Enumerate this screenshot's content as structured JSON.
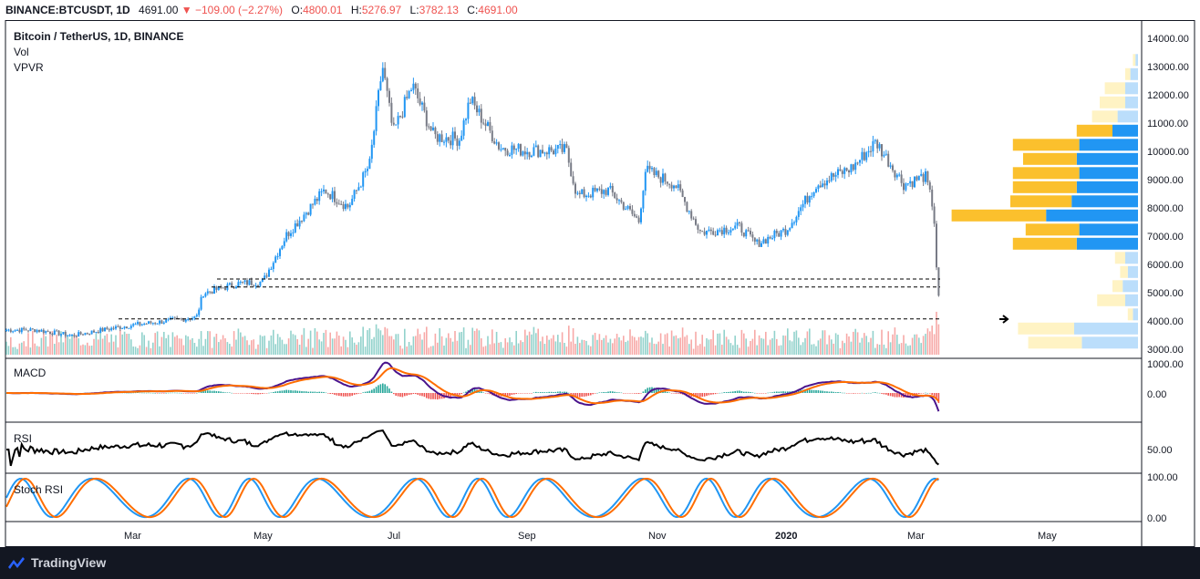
{
  "header": {
    "symbol": "BINANCE:BTCUSDT, 1D",
    "price": "4691.00",
    "change": "−109.00 (−2.27%)",
    "o_label": "O:",
    "o_value": "4800.01",
    "h_label": "H:",
    "h_value": "5276.97",
    "l_label": "L:",
    "l_value": "3782.13",
    "c_label": "C:",
    "c_value": "4691.00"
  },
  "legend": {
    "title": "Bitcoin / TetherUS, 1D, BINANCE",
    "vol": "Vol",
    "vpvr": "VPVR"
  },
  "panes": {
    "macd": "MACD",
    "rsi": "RSI",
    "stoch": "Stoch RSI"
  },
  "price_axis": [
    "14000.00",
    "13000.00",
    "12000.00",
    "11000.00",
    "10000.00",
    "9000.00",
    "8000.00",
    "7000.00",
    "6000.00",
    "5000.00",
    "4000.00",
    "3000.00"
  ],
  "macd_axis": [
    "1000.00",
    "0.00"
  ],
  "rsi_axis": [
    "50.00"
  ],
  "stoch_axis": [
    "100.00",
    "0.00"
  ],
  "time_axis": [
    {
      "label": "Mar",
      "bold": false
    },
    {
      "label": "May",
      "bold": false
    },
    {
      "label": "Jul",
      "bold": false
    },
    {
      "label": "Sep",
      "bold": false
    },
    {
      "label": "Nov",
      "bold": false
    },
    {
      "label": "2020",
      "bold": true
    },
    {
      "label": "Mar",
      "bold": false
    },
    {
      "label": "May",
      "bold": false
    }
  ],
  "footer": {
    "brand": "TradingView"
  },
  "colors": {
    "up": "#2196f3",
    "down": "#787b86",
    "vol_up": "#26a69a",
    "vol_down": "#ef5350",
    "macd": "#4a148c",
    "signal": "#ff6d00",
    "rsi": "#000000",
    "stoch_k": "#2196f3",
    "stoch_d": "#ff6d00",
    "vpvr_up": "#2196f3",
    "vpvr_down": "#fbc02d",
    "vpvr_up_light": "#bbdefb",
    "vpvr_down_light": "#fff3c4"
  },
  "chart_data": {
    "type": "candlestick",
    "title": "Bitcoin / TetherUS, 1D, BINANCE",
    "ylim": [
      2700,
      14500
    ],
    "horizontal_levels": [
      5450,
      5170,
      4040
    ],
    "close_path": [
      {
        "x": "2019-01-15",
        "y": 3650
      },
      {
        "x": "2019-02-01",
        "y": 3450
      },
      {
        "x": "2019-02-15",
        "y": 3650
      },
      {
        "x": "2019-03-01",
        "y": 3820
      },
      {
        "x": "2019-03-15",
        "y": 3950
      },
      {
        "x": "2019-03-31",
        "y": 4100
      },
      {
        "x": "2019-04-03",
        "y": 4950
      },
      {
        "x": "2019-04-20",
        "y": 5300
      },
      {
        "x": "2019-05-01",
        "y": 5350
      },
      {
        "x": "2019-05-12",
        "y": 7000
      },
      {
        "x": "2019-05-30",
        "y": 8600
      },
      {
        "x": "2019-06-10",
        "y": 8000
      },
      {
        "x": "2019-06-20",
        "y": 9500
      },
      {
        "x": "2019-06-26",
        "y": 13000
      },
      {
        "x": "2019-07-01",
        "y": 10600
      },
      {
        "x": "2019-07-10",
        "y": 12300
      },
      {
        "x": "2019-07-20",
        "y": 10500
      },
      {
        "x": "2019-08-01",
        "y": 10400
      },
      {
        "x": "2019-08-06",
        "y": 11800
      },
      {
        "x": "2019-08-20",
        "y": 10100
      },
      {
        "x": "2019-09-01",
        "y": 10000
      },
      {
        "x": "2019-09-20",
        "y": 10000
      },
      {
        "x": "2019-09-25",
        "y": 8400
      },
      {
        "x": "2019-10-10",
        "y": 8600
      },
      {
        "x": "2019-10-24",
        "y": 7500
      },
      {
        "x": "2019-10-27",
        "y": 9300
      },
      {
        "x": "2019-11-10",
        "y": 8800
      },
      {
        "x": "2019-11-22",
        "y": 7100
      },
      {
        "x": "2019-12-10",
        "y": 7300
      },
      {
        "x": "2019-12-18",
        "y": 6700
      },
      {
        "x": "2020-01-01",
        "y": 7200
      },
      {
        "x": "2020-01-15",
        "y": 8800
      },
      {
        "x": "2020-02-01",
        "y": 9400
      },
      {
        "x": "2020-02-12",
        "y": 10300
      },
      {
        "x": "2020-02-25",
        "y": 8800
      },
      {
        "x": "2020-03-06",
        "y": 9100
      },
      {
        "x": "2020-03-10",
        "y": 7900
      },
      {
        "x": "2020-03-12",
        "y": 4800
      },
      {
        "x": "2020-03-13",
        "y": 4691
      }
    ],
    "volume_profile": [
      {
        "price": 13200,
        "up": 1,
        "down": 1,
        "highlight": false
      },
      {
        "price": 12700,
        "up": 3,
        "down": 2,
        "highlight": false
      },
      {
        "price": 12200,
        "up": 5,
        "down": 8,
        "highlight": false
      },
      {
        "price": 11700,
        "up": 5,
        "down": 10,
        "highlight": false
      },
      {
        "price": 11200,
        "up": 8,
        "down": 10,
        "highlight": false
      },
      {
        "price": 10700,
        "up": 10,
        "down": 14,
        "highlight": true
      },
      {
        "price": 10200,
        "up": 23,
        "down": 26,
        "highlight": true
      },
      {
        "price": 9700,
        "up": 24,
        "down": 21,
        "highlight": true
      },
      {
        "price": 9200,
        "up": 23,
        "down": 26,
        "highlight": true
      },
      {
        "price": 8700,
        "up": 24,
        "down": 25,
        "highlight": true
      },
      {
        "price": 8200,
        "up": 26,
        "down": 24,
        "highlight": true
      },
      {
        "price": 7700,
        "up": 36,
        "down": 37,
        "highlight": true
      },
      {
        "price": 7200,
        "up": 23,
        "down": 21,
        "highlight": true
      },
      {
        "price": 6700,
        "up": 24,
        "down": 25,
        "highlight": true
      },
      {
        "price": 6200,
        "up": 5,
        "down": 4,
        "highlight": false
      },
      {
        "price": 5700,
        "up": 4,
        "down": 3,
        "highlight": false
      },
      {
        "price": 5200,
        "up": 6,
        "down": 4,
        "highlight": false
      },
      {
        "price": 4700,
        "up": 5,
        "down": 11,
        "highlight": false
      },
      {
        "price": 4200,
        "up": 2,
        "down": 2,
        "highlight": false
      },
      {
        "price": 3700,
        "up": 25,
        "down": 22,
        "highlight": false
      },
      {
        "price": 3200,
        "up": 22,
        "down": 21,
        "highlight": false
      }
    ]
  }
}
